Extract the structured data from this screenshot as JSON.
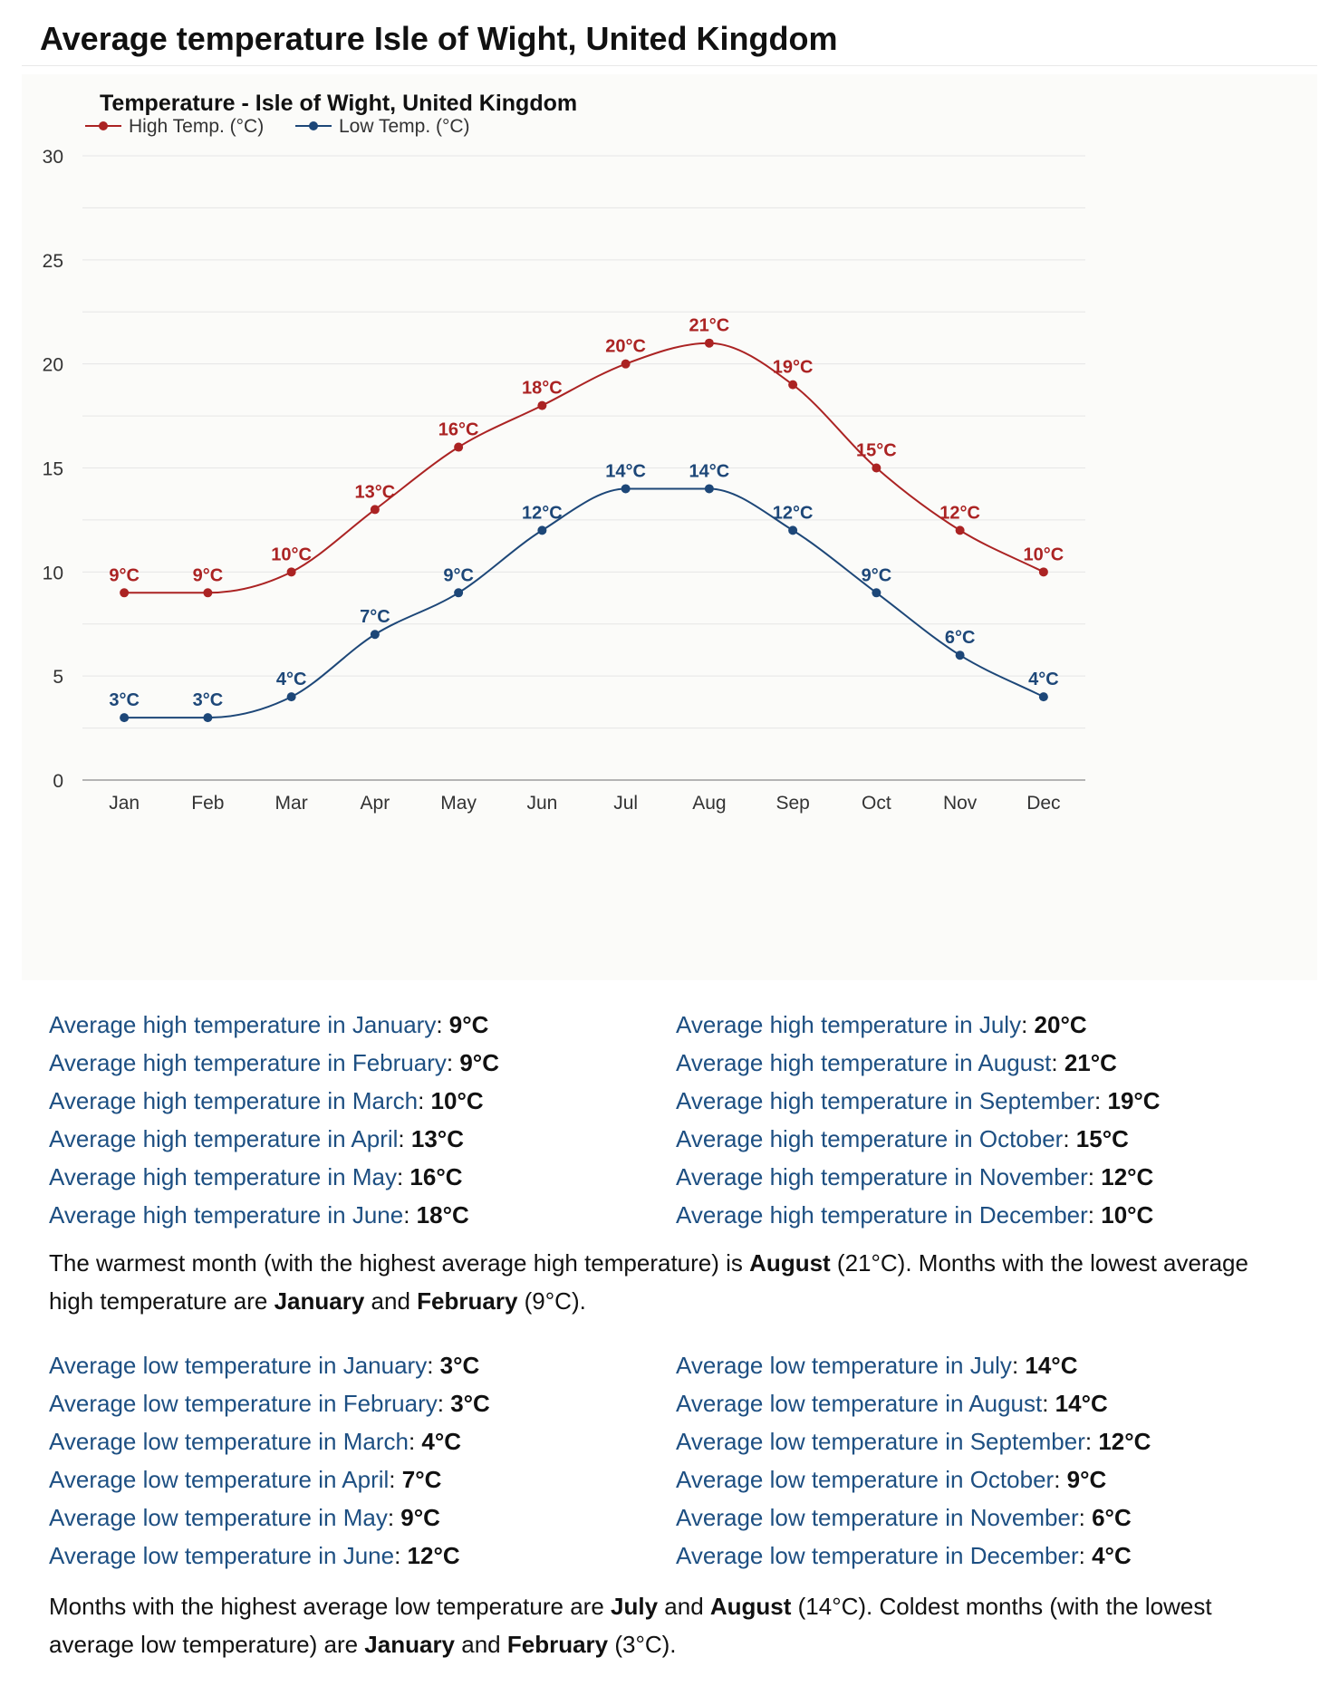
{
  "page": {
    "title": "Average temperature Isle of Wight, United Kingdom"
  },
  "colors": {
    "high": "#ab2323",
    "low": "#1d4778",
    "link": "#1d4f82",
    "grid": "#e6e6e6",
    "panel": "#fbfbf9"
  },
  "chart_data": {
    "type": "line",
    "title": "Temperature - Isle of Wight, United Kingdom",
    "xlabel": "",
    "ylabel": "",
    "categories": [
      "Jan",
      "Feb",
      "Mar",
      "Apr",
      "May",
      "Jun",
      "Jul",
      "Aug",
      "Sep",
      "Oct",
      "Nov",
      "Dec"
    ],
    "ylim": [
      0,
      30
    ],
    "yticks": [
      0,
      5,
      10,
      15,
      20,
      25,
      30
    ],
    "grid": true,
    "legend_position": "top-left",
    "value_suffix": "°C",
    "series": [
      {
        "name": "High Temp. (°C)",
        "color": "#ab2323",
        "values": [
          9,
          9,
          10,
          13,
          16,
          18,
          20,
          21,
          19,
          15,
          12,
          10
        ]
      },
      {
        "name": "Low Temp. (°C)",
        "color": "#1d4778",
        "values": [
          3,
          3,
          4,
          7,
          9,
          12,
          14,
          14,
          12,
          9,
          6,
          4
        ]
      }
    ]
  },
  "high_stats": {
    "left": [
      {
        "label": "Average high temperature in January",
        "value": "9°C"
      },
      {
        "label": "Average high temperature in February",
        "value": "9°C"
      },
      {
        "label": "Average high temperature in March",
        "value": "10°C"
      },
      {
        "label": "Average high temperature in April",
        "value": "13°C"
      },
      {
        "label": "Average high temperature in May",
        "value": "16°C"
      },
      {
        "label": "Average high temperature in June",
        "value": "18°C"
      }
    ],
    "right": [
      {
        "label": "Average high temperature in July",
        "value": "20°C"
      },
      {
        "label": "Average high temperature in August",
        "value": "21°C"
      },
      {
        "label": "Average high temperature in September",
        "value": "19°C"
      },
      {
        "label": "Average high temperature in October",
        "value": "15°C"
      },
      {
        "label": "Average high temperature in November",
        "value": "12°C"
      },
      {
        "label": "Average high temperature in December",
        "value": "10°C"
      }
    ]
  },
  "high_summary": {
    "t1": "The warmest month (with the highest average high temperature) is ",
    "b1": "August",
    "t2": " (21°C). Months with the lowest average high temperature are ",
    "b2": "January",
    "t3": " and ",
    "b3": "February",
    "t4": " (9°C)."
  },
  "low_stats": {
    "left": [
      {
        "label": "Average low temperature in January",
        "value": "3°C"
      },
      {
        "label": "Average low temperature in February",
        "value": "3°C"
      },
      {
        "label": "Average low temperature in March",
        "value": "4°C"
      },
      {
        "label": "Average low temperature in April",
        "value": "7°C"
      },
      {
        "label": "Average low temperature in May",
        "value": "9°C"
      },
      {
        "label": "Average low temperature in June",
        "value": "12°C"
      }
    ],
    "right": [
      {
        "label": "Average low temperature in July",
        "value": "14°C"
      },
      {
        "label": "Average low temperature in August",
        "value": "14°C"
      },
      {
        "label": "Average low temperature in September",
        "value": "12°C"
      },
      {
        "label": "Average low temperature in October",
        "value": "9°C"
      },
      {
        "label": "Average low temperature in November",
        "value": "6°C"
      },
      {
        "label": "Average low temperature in December",
        "value": "4°C"
      }
    ]
  },
  "low_summary": {
    "t1": "Months with the highest average low temperature are ",
    "b1": "July",
    "t2": " and ",
    "b2": "August",
    "t3": " (14°C). Coldest months (with the lowest average low temperature) are ",
    "b3": "January",
    "t4": " and ",
    "b4": "February",
    "t5": " (3°C)."
  }
}
